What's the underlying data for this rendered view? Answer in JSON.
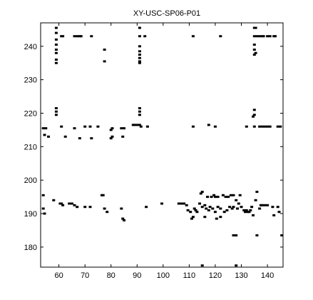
{
  "chart_data": {
    "type": "scatter",
    "title": "XY-USC-SP06-P01",
    "xlabel": "",
    "ylabel": "",
    "xlim": [
      53,
      146
    ],
    "ylim": [
      174,
      247
    ],
    "xticks": [
      60,
      70,
      80,
      90,
      100,
      110,
      120,
      130,
      140
    ],
    "yticks": [
      180,
      190,
      200,
      210,
      220,
      230,
      240
    ],
    "grid": false,
    "marker_color": "#000000",
    "series": [
      {
        "points": [
          [
            59,
            245.5
          ],
          [
            59,
            244
          ],
          [
            59,
            242
          ],
          [
            59,
            240.5
          ],
          [
            59,
            239
          ],
          [
            59,
            238
          ],
          [
            59,
            236
          ],
          [
            59,
            235
          ],
          [
            61,
            243
          ],
          [
            61.5,
            243
          ],
          [
            66,
            243
          ],
          [
            67,
            243
          ],
          [
            68,
            243
          ],
          [
            68.5,
            243
          ],
          [
            72.5,
            243
          ],
          [
            77.5,
            239
          ],
          [
            77.5,
            235.5
          ],
          [
            91,
            245.5
          ],
          [
            91,
            243
          ],
          [
            91,
            240
          ],
          [
            91,
            238.5
          ],
          [
            91,
            237.5
          ],
          [
            91,
            236.5
          ],
          [
            91,
            235.5
          ],
          [
            91,
            235
          ],
          [
            93,
            243
          ],
          [
            111.5,
            243
          ],
          [
            122,
            243
          ],
          [
            135,
            245.5
          ],
          [
            135.5,
            245.5
          ],
          [
            135,
            243
          ],
          [
            135,
            240.5
          ],
          [
            135,
            239
          ],
          [
            135.5,
            238
          ],
          [
            135,
            237.5
          ],
          [
            136,
            243
          ],
          [
            137,
            243
          ],
          [
            138,
            243
          ],
          [
            138.5,
            243
          ],
          [
            140,
            243
          ],
          [
            141,
            243
          ],
          [
            142.5,
            243
          ],
          [
            143,
            243
          ],
          [
            59,
            221.5
          ],
          [
            59,
            220.5
          ],
          [
            59,
            219.5
          ],
          [
            91,
            221.5
          ],
          [
            91,
            220.5
          ],
          [
            91,
            219.5
          ],
          [
            135,
            221
          ],
          [
            135,
            219.5
          ],
          [
            134.5,
            219
          ],
          [
            54,
            215.5
          ],
          [
            55,
            215.5
          ],
          [
            54.5,
            213.5
          ],
          [
            56,
            213
          ],
          [
            61,
            216
          ],
          [
            62.5,
            213
          ],
          [
            66,
            215.5
          ],
          [
            68,
            212.5
          ],
          [
            70,
            216
          ],
          [
            72,
            216
          ],
          [
            72.5,
            212.5
          ],
          [
            75,
            216
          ],
          [
            80,
            215
          ],
          [
            80.5,
            215.5
          ],
          [
            80.5,
            213
          ],
          [
            80,
            212.5
          ],
          [
            84,
            215.5
          ],
          [
            85,
            215.5
          ],
          [
            84.5,
            213
          ],
          [
            88.5,
            216.5
          ],
          [
            89,
            216.5
          ],
          [
            90,
            216.5
          ],
          [
            91,
            216.5
          ],
          [
            91.5,
            216
          ],
          [
            94,
            216
          ],
          [
            111.5,
            216
          ],
          [
            117.5,
            216.5
          ],
          [
            120,
            216
          ],
          [
            132,
            216
          ],
          [
            135,
            216
          ],
          [
            137,
            216
          ],
          [
            138,
            216
          ],
          [
            139,
            216
          ],
          [
            140,
            216
          ],
          [
            141,
            216
          ],
          [
            144,
            216
          ],
          [
            145,
            216
          ],
          [
            54,
            195.5
          ],
          [
            54,
            191.5
          ],
          [
            54.5,
            190
          ],
          [
            58,
            194
          ],
          [
            60.5,
            193
          ],
          [
            61,
            193
          ],
          [
            61.5,
            192.5
          ],
          [
            64,
            193
          ],
          [
            65,
            193
          ],
          [
            66,
            192.5
          ],
          [
            67,
            192
          ],
          [
            70,
            192
          ],
          [
            72,
            192
          ],
          [
            76.5,
            195.5
          ],
          [
            77,
            195.5
          ],
          [
            77.5,
            191.5
          ],
          [
            78.5,
            190.5
          ],
          [
            84,
            191.5
          ],
          [
            84.5,
            188.5
          ],
          [
            85,
            188
          ],
          [
            93.5,
            192
          ],
          [
            99.5,
            193
          ],
          [
            106,
            193
          ],
          [
            107,
            193
          ],
          [
            108,
            193
          ],
          [
            109,
            192.5
          ],
          [
            109.5,
            191
          ],
          [
            110.5,
            190.5
          ],
          [
            111.5,
            189
          ],
          [
            111,
            188.5
          ],
          [
            112,
            191.5
          ],
          [
            112.5,
            191
          ],
          [
            113,
            190.5
          ],
          [
            114,
            193
          ],
          [
            114.5,
            196
          ],
          [
            115,
            192
          ],
          [
            115,
            196.5
          ],
          [
            116,
            189
          ],
          [
            116,
            192.5
          ],
          [
            116.5,
            191.5
          ],
          [
            117,
            195
          ],
          [
            117.5,
            191
          ],
          [
            118,
            192
          ],
          [
            118.5,
            195
          ],
          [
            119,
            191.5
          ],
          [
            119.5,
            195.5
          ],
          [
            120,
            195
          ],
          [
            120,
            190.5
          ],
          [
            120.5,
            188.5
          ],
          [
            121,
            192
          ],
          [
            121,
            195
          ],
          [
            122,
            191.5
          ],
          [
            122,
            189
          ],
          [
            123,
            195.5
          ],
          [
            123.5,
            190.5
          ],
          [
            124,
            195
          ],
          [
            124.5,
            191
          ],
          [
            125,
            195
          ],
          [
            125.5,
            192
          ],
          [
            126,
            195.5
          ],
          [
            126.5,
            191.5
          ],
          [
            127,
            192
          ],
          [
            127,
            195.5
          ],
          [
            128,
            194
          ],
          [
            128.5,
            191.5
          ],
          [
            129,
            193
          ],
          [
            129.5,
            195.5
          ],
          [
            130,
            192
          ],
          [
            131,
            191
          ],
          [
            131.5,
            190.5
          ],
          [
            132,
            191
          ],
          [
            132.5,
            190.5
          ],
          [
            133,
            190.5
          ],
          [
            133.5,
            191
          ],
          [
            134,
            192
          ],
          [
            134.5,
            189.5
          ],
          [
            135.5,
            194
          ],
          [
            136,
            196.5
          ],
          [
            137,
            191.5
          ],
          [
            137.5,
            192.5
          ],
          [
            138,
            192.5
          ],
          [
            139,
            192.5
          ],
          [
            140,
            192.5
          ],
          [
            142,
            192
          ],
          [
            142.5,
            189.5
          ],
          [
            144,
            192
          ],
          [
            144.5,
            190.5
          ],
          [
            127,
            183.5
          ],
          [
            128,
            183.5
          ],
          [
            136,
            183.5
          ],
          [
            145.5,
            183.5
          ],
          [
            115,
            174.5
          ],
          [
            128,
            174.5
          ]
        ]
      }
    ]
  }
}
